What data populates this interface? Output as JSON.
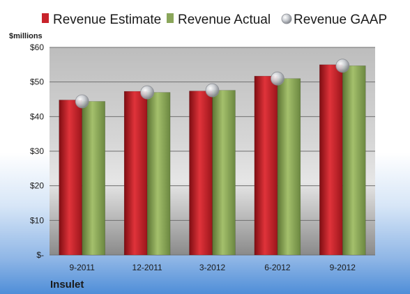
{
  "chart_data": {
    "type": "bar",
    "ylabel": "$millions",
    "company": "Insulet",
    "categories": [
      "9-2011",
      "12-2011",
      "3-2012",
      "6-2012",
      "9-2012"
    ],
    "series": [
      {
        "name": "Revenue Estimate",
        "type": "bar",
        "color": "#c8232b",
        "values": [
          44.8,
          47.3,
          47.4,
          51.7,
          55.0
        ]
      },
      {
        "name": "Revenue Actual",
        "type": "bar",
        "color": "#8aa65a",
        "values": [
          44.4,
          47.0,
          47.6,
          51.0,
          54.7
        ]
      },
      {
        "name": "Revenue GAAP",
        "type": "marker",
        "color": "#c9ccd1",
        "values": [
          44.4,
          47.0,
          47.6,
          51.0,
          54.7
        ]
      }
    ],
    "ylim": [
      0,
      60
    ],
    "yticks": [
      0,
      10,
      20,
      30,
      40,
      50,
      60
    ],
    "ytick_labels": [
      "$-",
      "$10",
      "$20",
      "$30",
      "$40",
      "$50",
      "$60"
    ],
    "grid": true,
    "legend_position": "top"
  }
}
